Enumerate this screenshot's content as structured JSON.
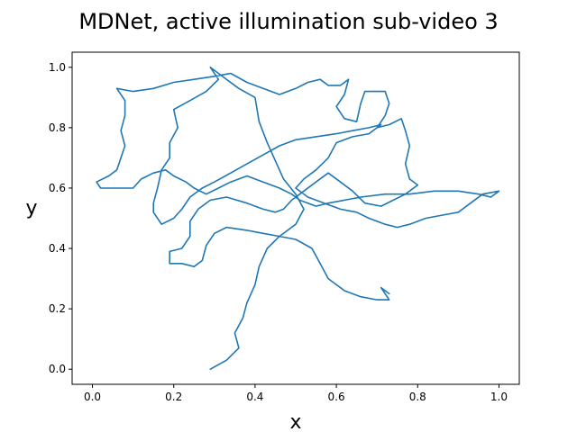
{
  "chart_data": {
    "type": "line",
    "title": "MDNet, active illumination sub-video 3",
    "xlabel": "x",
    "ylabel": "y",
    "xlim": [
      -0.05,
      1.05
    ],
    "ylim": [
      -0.05,
      1.05
    ],
    "xticks": [
      "0.0",
      "0.2",
      "0.4",
      "0.6",
      "0.8",
      "1.0"
    ],
    "yticks": [
      "0.0",
      "0.2",
      "0.4",
      "0.6",
      "0.8",
      "1.0"
    ],
    "grid": false,
    "series": [
      {
        "color": "#1f77b4",
        "points": [
          [
            0.29,
            0.0
          ],
          [
            0.33,
            0.03
          ],
          [
            0.36,
            0.07
          ],
          [
            0.35,
            0.12
          ],
          [
            0.37,
            0.17
          ],
          [
            0.38,
            0.22
          ],
          [
            0.4,
            0.28
          ],
          [
            0.41,
            0.34
          ],
          [
            0.43,
            0.4
          ],
          [
            0.46,
            0.44
          ],
          [
            0.5,
            0.48
          ],
          [
            0.52,
            0.53
          ],
          [
            0.5,
            0.58
          ],
          [
            0.47,
            0.63
          ],
          [
            0.45,
            0.69
          ],
          [
            0.43,
            0.75
          ],
          [
            0.41,
            0.82
          ],
          [
            0.4,
            0.9
          ],
          [
            0.36,
            0.93
          ],
          [
            0.31,
            0.98
          ],
          [
            0.29,
            1.0
          ],
          [
            0.31,
            0.96
          ],
          [
            0.28,
            0.92
          ],
          [
            0.24,
            0.89
          ],
          [
            0.2,
            0.86
          ],
          [
            0.21,
            0.8
          ],
          [
            0.19,
            0.75
          ],
          [
            0.19,
            0.7
          ],
          [
            0.17,
            0.66
          ],
          [
            0.16,
            0.6
          ],
          [
            0.15,
            0.55
          ],
          [
            0.15,
            0.52
          ],
          [
            0.17,
            0.48
          ],
          [
            0.2,
            0.5
          ],
          [
            0.22,
            0.53
          ],
          [
            0.24,
            0.57
          ],
          [
            0.27,
            0.6
          ],
          [
            0.3,
            0.62
          ],
          [
            0.34,
            0.65
          ],
          [
            0.38,
            0.68
          ],
          [
            0.42,
            0.71
          ],
          [
            0.46,
            0.74
          ],
          [
            0.5,
            0.76
          ],
          [
            0.55,
            0.77
          ],
          [
            0.6,
            0.78
          ],
          [
            0.64,
            0.79
          ],
          [
            0.68,
            0.8
          ],
          [
            0.71,
            0.81
          ],
          [
            0.68,
            0.78
          ],
          [
            0.64,
            0.77
          ],
          [
            0.6,
            0.75
          ],
          [
            0.58,
            0.7
          ],
          [
            0.55,
            0.66
          ],
          [
            0.52,
            0.63
          ],
          [
            0.5,
            0.6
          ],
          [
            0.53,
            0.57
          ],
          [
            0.57,
            0.55
          ],
          [
            0.61,
            0.53
          ],
          [
            0.65,
            0.52
          ],
          [
            0.68,
            0.5
          ],
          [
            0.72,
            0.48
          ],
          [
            0.75,
            0.47
          ],
          [
            0.78,
            0.48
          ],
          [
            0.82,
            0.5
          ],
          [
            0.86,
            0.51
          ],
          [
            0.9,
            0.52
          ],
          [
            0.93,
            0.55
          ],
          [
            0.96,
            0.58
          ],
          [
            1.0,
            0.59
          ],
          [
            0.98,
            0.57
          ],
          [
            0.95,
            0.58
          ],
          [
            0.9,
            0.59
          ],
          [
            0.84,
            0.59
          ],
          [
            0.78,
            0.58
          ],
          [
            0.72,
            0.58
          ],
          [
            0.66,
            0.57
          ],
          [
            0.62,
            0.56
          ],
          [
            0.58,
            0.55
          ],
          [
            0.55,
            0.54
          ],
          [
            0.51,
            0.56
          ],
          [
            0.49,
            0.58
          ],
          [
            0.46,
            0.6
          ],
          [
            0.42,
            0.62
          ],
          [
            0.38,
            0.64
          ],
          [
            0.34,
            0.62
          ],
          [
            0.31,
            0.6
          ],
          [
            0.28,
            0.58
          ],
          [
            0.25,
            0.6
          ],
          [
            0.23,
            0.62
          ],
          [
            0.2,
            0.64
          ],
          [
            0.18,
            0.66
          ],
          [
            0.15,
            0.65
          ],
          [
            0.12,
            0.63
          ],
          [
            0.1,
            0.6
          ],
          [
            0.06,
            0.6
          ],
          [
            0.02,
            0.6
          ],
          [
            0.01,
            0.62
          ],
          [
            0.04,
            0.64
          ],
          [
            0.06,
            0.66
          ],
          [
            0.07,
            0.7
          ],
          [
            0.08,
            0.74
          ],
          [
            0.07,
            0.79
          ],
          [
            0.08,
            0.84
          ],
          [
            0.08,
            0.89
          ],
          [
            0.06,
            0.93
          ],
          [
            0.1,
            0.92
          ],
          [
            0.15,
            0.93
          ],
          [
            0.2,
            0.95
          ],
          [
            0.25,
            0.96
          ],
          [
            0.3,
            0.97
          ],
          [
            0.34,
            0.98
          ],
          [
            0.38,
            0.95
          ],
          [
            0.42,
            0.93
          ],
          [
            0.46,
            0.91
          ],
          [
            0.5,
            0.93
          ],
          [
            0.53,
            0.95
          ],
          [
            0.56,
            0.96
          ],
          [
            0.58,
            0.94
          ],
          [
            0.61,
            0.94
          ],
          [
            0.63,
            0.96
          ],
          [
            0.62,
            0.91
          ],
          [
            0.6,
            0.87
          ],
          [
            0.62,
            0.83
          ],
          [
            0.65,
            0.82
          ],
          [
            0.66,
            0.88
          ],
          [
            0.67,
            0.92
          ],
          [
            0.72,
            0.92
          ],
          [
            0.73,
            0.88
          ],
          [
            0.72,
            0.84
          ],
          [
            0.7,
            0.8
          ],
          [
            0.73,
            0.81
          ],
          [
            0.76,
            0.83
          ],
          [
            0.77,
            0.79
          ],
          [
            0.78,
            0.74
          ],
          [
            0.77,
            0.68
          ],
          [
            0.78,
            0.63
          ],
          [
            0.8,
            0.61
          ],
          [
            0.77,
            0.58
          ],
          [
            0.74,
            0.56
          ],
          [
            0.71,
            0.54
          ],
          [
            0.67,
            0.55
          ],
          [
            0.64,
            0.59
          ],
          [
            0.61,
            0.62
          ],
          [
            0.58,
            0.65
          ],
          [
            0.55,
            0.62
          ],
          [
            0.52,
            0.59
          ],
          [
            0.49,
            0.56
          ],
          [
            0.47,
            0.53
          ],
          [
            0.45,
            0.52
          ],
          [
            0.42,
            0.53
          ],
          [
            0.38,
            0.55
          ],
          [
            0.33,
            0.57
          ],
          [
            0.29,
            0.56
          ],
          [
            0.26,
            0.53
          ],
          [
            0.24,
            0.49
          ],
          [
            0.24,
            0.44
          ],
          [
            0.22,
            0.4
          ],
          [
            0.19,
            0.39
          ],
          [
            0.19,
            0.35
          ],
          [
            0.22,
            0.35
          ],
          [
            0.25,
            0.34
          ],
          [
            0.27,
            0.36
          ],
          [
            0.28,
            0.41
          ],
          [
            0.3,
            0.45
          ],
          [
            0.33,
            0.47
          ],
          [
            0.38,
            0.46
          ],
          [
            0.42,
            0.45
          ],
          [
            0.46,
            0.44
          ],
          [
            0.5,
            0.43
          ],
          [
            0.54,
            0.4
          ],
          [
            0.56,
            0.35
          ],
          [
            0.58,
            0.3
          ],
          [
            0.62,
            0.26
          ],
          [
            0.66,
            0.24
          ],
          [
            0.7,
            0.23
          ],
          [
            0.73,
            0.23
          ],
          [
            0.71,
            0.27
          ],
          [
            0.73,
            0.25
          ]
        ]
      }
    ]
  }
}
